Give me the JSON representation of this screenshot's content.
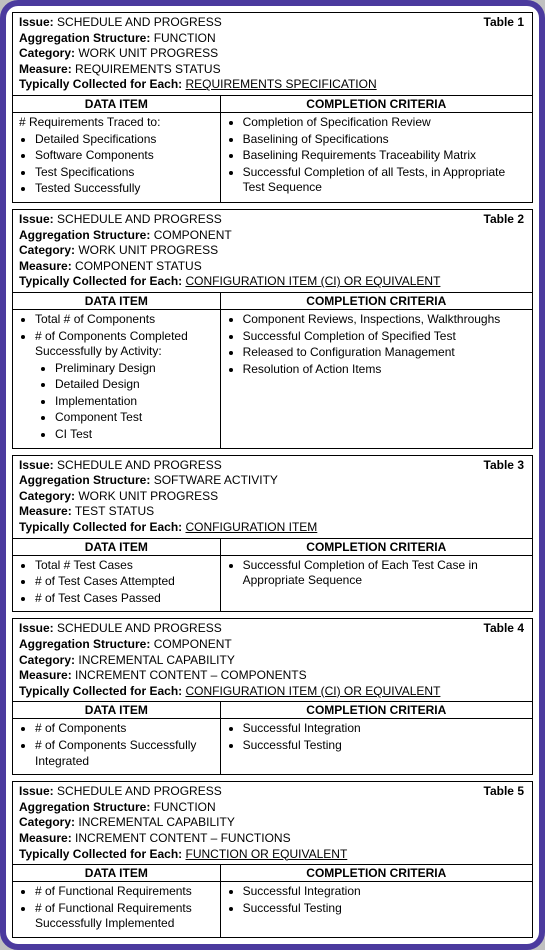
{
  "labels": {
    "issue": "Issue:",
    "agg": "Aggregation Structure:",
    "cat": "Category:",
    "meas": "Measure:",
    "coll": "Typically Collected for Each:",
    "dataItem": "DATA ITEM",
    "compCrit": "COMPLETION CRITERIA",
    "tablePrefix": "Table"
  },
  "tables": [
    {
      "num": "1",
      "issue": "SCHEDULE AND PROGRESS",
      "agg": "FUNCTION",
      "cat": "WORK UNIT PROGRESS",
      "meas": "REQUIREMENTS STATUS",
      "coll": "REQUIREMENTS SPECIFICATION",
      "leftIntro": "# Requirements Traced to:",
      "leftItems": [
        "Detailed Specifications",
        "Software Components",
        "Test Specifications",
        "Tested Successfully"
      ],
      "rightItems": [
        "Completion of Specification Review",
        "Baselining of   Specifications",
        "Baselining Requirements Traceability Matrix",
        "Successful Completion of all Tests, in Appropriate Test Sequence"
      ]
    },
    {
      "num": "2",
      "issue": "SCHEDULE AND PROGRESS",
      "agg": "COMPONENT",
      "cat": "WORK UNIT PROGRESS",
      "meas": "COMPONENT STATUS",
      "coll": "CONFIGURATION ITEM (CI) OR EQUIVALENT",
      "leftItems": [
        "Total # of Components",
        "# of Components Completed Successfully by Activity:"
      ],
      "leftSubItems": [
        "Preliminary Design",
        "Detailed Design",
        "Implementation",
        "Component Test",
        "CI Test"
      ],
      "rightItems": [
        "Component Reviews, Inspections, Walkthroughs",
        "Successful Completion of Specified Test",
        "Released to Configuration Management",
        "Resolution of Action Items"
      ]
    },
    {
      "num": "3",
      "issue": "SCHEDULE AND PROGRESS",
      "agg": "SOFTWARE ACTIVITY",
      "cat": "WORK UNIT PROGRESS",
      "meas": "TEST STATUS",
      "coll": "CONFIGURATION ITEM",
      "leftItems": [
        "Total # Test Cases",
        "# of Test Cases Attempted",
        "# of Test Cases Passed"
      ],
      "rightItems": [
        "Successful Completion of Each Test Case in Appropriate Sequence"
      ]
    },
    {
      "num": "4",
      "issue": "SCHEDULE AND PROGRESS",
      "agg": "COMPONENT",
      "cat": "INCREMENTAL CAPABILITY",
      "meas": "INCREMENT CONTENT – COMPONENTS",
      "coll": "CONFIGURATION ITEM (CI) OR EQUIVALENT",
      "leftItems": [
        "# of Components",
        "# of Components Successfully Integrated"
      ],
      "rightItems": [
        "Successful Integration",
        "Successful Testing"
      ]
    },
    {
      "num": "5",
      "issue": "SCHEDULE AND PROGRESS",
      "agg": "FUNCTION",
      "cat": "INCREMENTAL CAPABILITY",
      "meas": "INCREMENT CONTENT – FUNCTIONS",
      "coll": "FUNCTION OR EQUIVALENT",
      "leftItems": [
        "# of Functional Requirements",
        "# of Functional Requirements  Successfully Implemented"
      ],
      "rightItems": [
        "Successful Integration",
        "Successful Testing"
      ]
    }
  ],
  "style": {
    "frameBorderColor": "#4b3a9e",
    "frameBg": "#ffffff",
    "pageBg": "#c0c0c0",
    "textColor": "#000000",
    "fontSize": 12,
    "fontFamily": "Arial"
  }
}
